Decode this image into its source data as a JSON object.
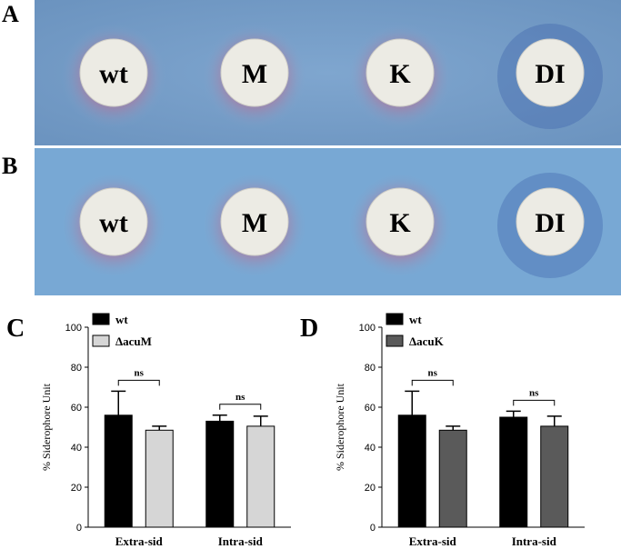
{
  "photos": [
    {
      "label": "A",
      "disks": [
        "wt",
        "M",
        "K",
        "DI"
      ]
    },
    {
      "label": "B",
      "disks": [
        "wt",
        "M",
        "K",
        "DI"
      ]
    }
  ],
  "chart_data": [
    {
      "type": "bar",
      "panel": "C",
      "ylabel": "% Siderophore Unit",
      "categories": [
        "Extra-sid",
        "Intra-sid"
      ],
      "series": [
        {
          "name": "wt",
          "color": "#000000",
          "values": [
            56,
            53
          ],
          "errors": [
            12,
            3
          ]
        },
        {
          "name": "ΔacuM",
          "color": "#d6d6d6",
          "values": [
            48.5,
            50.5
          ],
          "errors": [
            2,
            5
          ]
        }
      ],
      "annotations": [
        "ns",
        "ns"
      ],
      "ylim": [
        0,
        100
      ],
      "yticks": [
        0,
        20,
        40,
        60,
        80,
        100
      ],
      "legend": "upper left"
    },
    {
      "type": "bar",
      "panel": "D",
      "ylabel": "% Siderophore Unit",
      "categories": [
        "Extra-sid",
        "Intra-sid"
      ],
      "series": [
        {
          "name": "wt",
          "color": "#000000",
          "values": [
            56,
            55
          ],
          "errors": [
            12,
            3
          ]
        },
        {
          "name": "ΔacuK",
          "color": "#5a5a5a",
          "values": [
            48.5,
            50.5
          ],
          "errors": [
            2,
            5
          ]
        }
      ],
      "annotations": [
        "ns",
        "ns"
      ],
      "ylim": [
        0,
        100
      ],
      "yticks": [
        0,
        20,
        40,
        60,
        80,
        100
      ],
      "legend": "upper left"
    }
  ]
}
